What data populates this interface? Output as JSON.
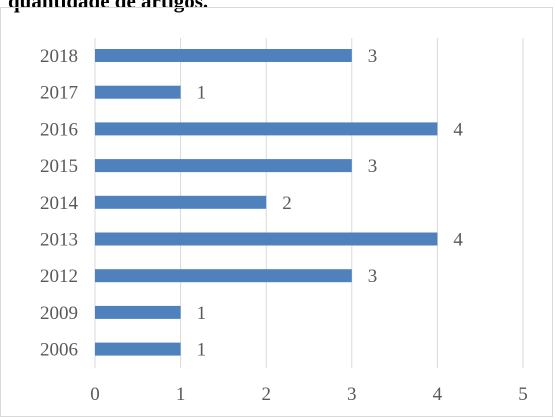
{
  "heading": "quantidade de artigos.",
  "colors": {
    "bar": "#4f81bd",
    "grid": "#d9d9d9",
    "text": "#595959"
  },
  "chart_data": {
    "type": "bar",
    "orientation": "horizontal",
    "title": "",
    "xlabel": "",
    "ylabel": "",
    "categories": [
      "2018",
      "2017",
      "2016",
      "2015",
      "2014",
      "2013",
      "2012",
      "2009",
      "2006"
    ],
    "values": [
      3,
      1,
      4,
      3,
      2,
      4,
      3,
      1,
      1
    ],
    "xlim": [
      0,
      5
    ],
    "xticks": [
      0,
      1,
      2,
      3,
      4,
      5
    ],
    "grid": "vertical",
    "legend": "none",
    "data_labels": true
  }
}
